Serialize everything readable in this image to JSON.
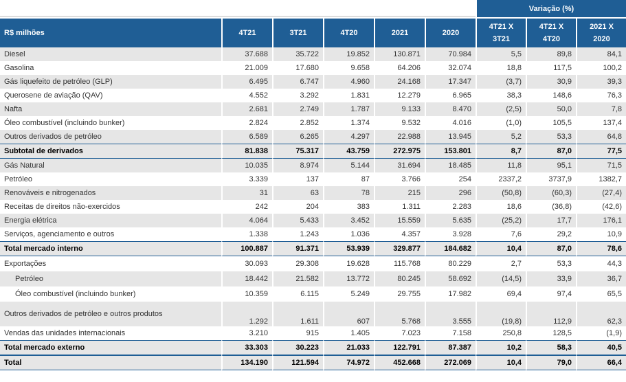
{
  "variation_header": "Variação (%)",
  "columns": [
    "R$ milhões",
    "4T21",
    "3T21",
    "4T20",
    "2021",
    "2020",
    "4T21 X\n3T21",
    "4T21 X\n4T20",
    "2021 X\n2020"
  ],
  "rows": [
    {
      "label": "Diesel",
      "values": [
        "37.688",
        "35.722",
        "19.852",
        "130.871",
        "70.984",
        "5,5",
        "89,8",
        "84,1"
      ]
    },
    {
      "label": "Gasolina",
      "values": [
        "21.009",
        "17.680",
        "9.658",
        "64.206",
        "32.074",
        "18,8",
        "117,5",
        "100,2"
      ]
    },
    {
      "label": "Gás liquefeito de petróleo (GLP)",
      "values": [
        "6.495",
        "6.747",
        "4.960",
        "24.168",
        "17.347",
        "(3,7)",
        "30,9",
        "39,3"
      ]
    },
    {
      "label": "Querosene de aviação (QAV)",
      "values": [
        "4.552",
        "3.292",
        "1.831",
        "12.279",
        "6.965",
        "38,3",
        "148,6",
        "76,3"
      ]
    },
    {
      "label": "Nafta",
      "values": [
        "2.681",
        "2.749",
        "1.787",
        "9.133",
        "8.470",
        "(2,5)",
        "50,0",
        "7,8"
      ]
    },
    {
      "label": "Óleo combustível (incluindo bunker)",
      "values": [
        "2.824",
        "2.852",
        "1.374",
        "9.532",
        "4.016",
        "(1,0)",
        "105,5",
        "137,4"
      ]
    },
    {
      "label": "Outros derivados de petróleo",
      "values": [
        "6.589",
        "6.265",
        "4.297",
        "22.988",
        "13.945",
        "5,2",
        "53,3",
        "64,8"
      ]
    },
    {
      "label": "Subtotal de derivados",
      "values": [
        "81.838",
        "75.317",
        "43.759",
        "272.975",
        "153.801",
        "8,7",
        "87,0",
        "77,5"
      ]
    },
    {
      "label": "Gás Natural",
      "values": [
        "10.035",
        "8.974",
        "5.144",
        "31.694",
        "18.485",
        "11,8",
        "95,1",
        "71,5"
      ]
    },
    {
      "label": "Petróleo",
      "values": [
        "3.339",
        "137",
        "87",
        "3.766",
        "254",
        "2337,2",
        "3737,9",
        "1382,7"
      ]
    },
    {
      "label": "Renováveis e nitrogenados",
      "values": [
        "31",
        "63",
        "78",
        "215",
        "296",
        "(50,8)",
        "(60,3)",
        "(27,4)"
      ]
    },
    {
      "label": "Receitas de direitos não-exercidos",
      "values": [
        "242",
        "204",
        "383",
        "1.311",
        "2.283",
        "18,6",
        "(36,8)",
        "(42,6)"
      ]
    },
    {
      "label": "Energia elétrica",
      "values": [
        "4.064",
        "5.433",
        "3.452",
        "15.559",
        "5.635",
        "(25,2)",
        "17,7",
        "176,1"
      ]
    },
    {
      "label": "Serviços, agenciamento e outros",
      "values": [
        "1.338",
        "1.243",
        "1.036",
        "4.357",
        "3.928",
        "7,6",
        "29,2",
        "10,9"
      ]
    },
    {
      "label": "Total mercado interno",
      "values": [
        "100.887",
        "91.371",
        "53.939",
        "329.877",
        "184.682",
        "10,4",
        "87,0",
        "78,6"
      ]
    },
    {
      "label": "Exportações",
      "values": [
        "30.093",
        "29.308",
        "19.628",
        "115.768",
        "80.229",
        "2,7",
        "53,3",
        "44,3"
      ]
    },
    {
      "label": "Petróleo",
      "values": [
        "18.442",
        "21.582",
        "13.772",
        "80.245",
        "58.692",
        "(14,5)",
        "33,9",
        "36,7"
      ]
    },
    {
      "label": "Óleo combustível (incluindo bunker)",
      "values": [
        "10.359",
        "6.115",
        "5.249",
        "29.755",
        "17.982",
        "69,4",
        "97,4",
        "65,5"
      ]
    },
    {
      "label": "Outros derivados de petróleo e outros produtos",
      "values": [
        "1.292",
        "1.611",
        "607",
        "5.768",
        "3.555",
        "(19,8)",
        "112,9",
        "62,3"
      ]
    },
    {
      "label": "Vendas das unidades internacionais",
      "values": [
        "3.210",
        "915",
        "1.405",
        "7.023",
        "7.158",
        "250,8",
        "128,5",
        "(1,9)"
      ]
    },
    {
      "label": "Total mercado externo",
      "values": [
        "33.303",
        "30.223",
        "21.033",
        "122.791",
        "87.387",
        "10,2",
        "58,3",
        "40,5"
      ]
    },
    {
      "label": "Total",
      "values": [
        "134.190",
        "121.594",
        "74.972",
        "452.668",
        "272.069",
        "10,4",
        "79,0",
        "66,4"
      ]
    }
  ]
}
